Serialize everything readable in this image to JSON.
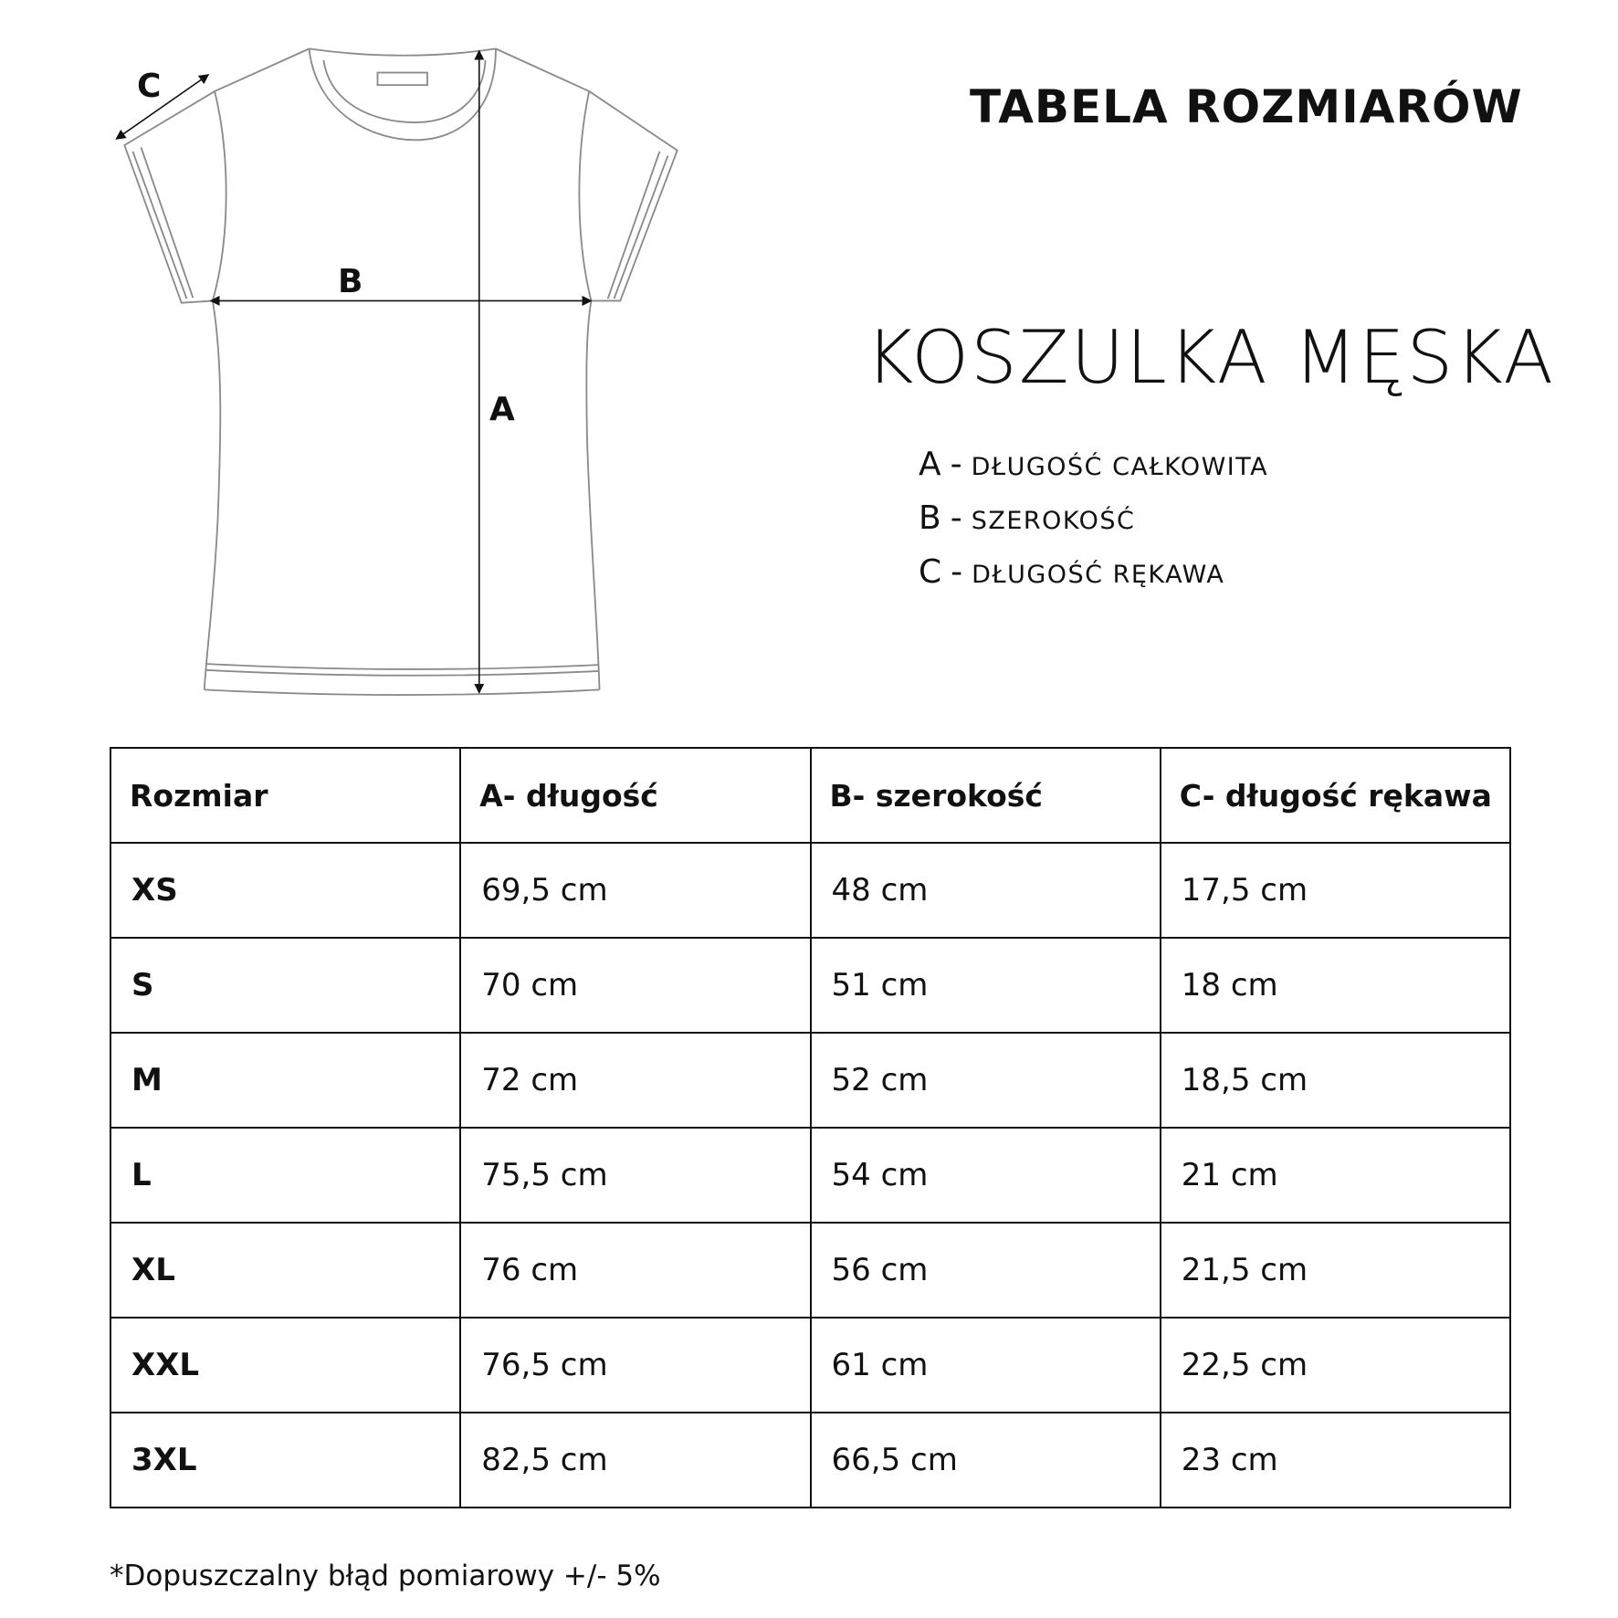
{
  "header": {
    "title": "TABELA ROZMIARÓW",
    "product": "KOSZULKA MĘSKA"
  },
  "diagram": {
    "label_a": "A",
    "label_b": "B",
    "label_c": "C"
  },
  "legend": [
    {
      "key": "A",
      "sep": "-",
      "desc": "DŁUGOŚĆ CAŁKOWITA"
    },
    {
      "key": "B",
      "sep": "-",
      "desc": "SZEROKOŚĆ"
    },
    {
      "key": "C",
      "sep": "-",
      "desc": "DŁUGOŚĆ RĘKAWA"
    }
  ],
  "table": {
    "headers": [
      "Rozmiar",
      "A- długość",
      "B- szerokość",
      "C- długość rękawa"
    ],
    "rows": [
      [
        "XS",
        "69,5 cm",
        "48 cm",
        "17,5 cm"
      ],
      [
        "S",
        "70 cm",
        "51 cm",
        "18 cm"
      ],
      [
        "M",
        "72 cm",
        "52 cm",
        "18,5 cm"
      ],
      [
        "L",
        "75,5 cm",
        "54 cm",
        "21 cm"
      ],
      [
        "XL",
        "76 cm",
        "56 cm",
        "21,5 cm"
      ],
      [
        "XXL",
        "76,5 cm",
        "61 cm",
        "22,5 cm"
      ],
      [
        "3XL",
        "82,5 cm",
        "66,5 cm",
        "23 cm"
      ]
    ]
  },
  "footnote": "*Dopuszczalny błąd pomiarowy +/- 5%"
}
